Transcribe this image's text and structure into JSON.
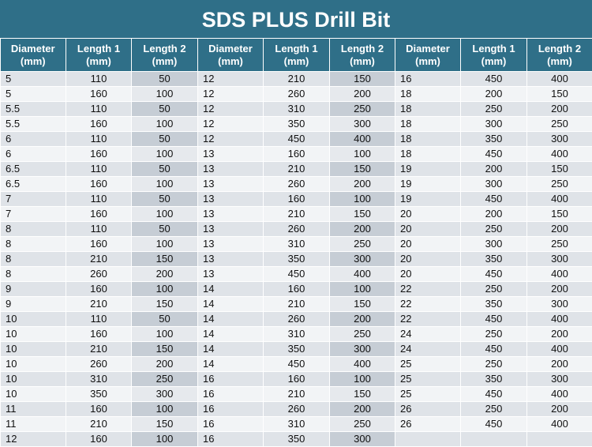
{
  "title": "SDS PLUS Drill Bit",
  "headers": [
    [
      "Diameter",
      "(mm)"
    ],
    [
      "Length 1",
      "(mm)"
    ],
    [
      "Length 2",
      "(mm)"
    ],
    [
      "Diameter",
      "(mm)"
    ],
    [
      "Length 1",
      "(mm)"
    ],
    [
      "Length 2",
      "(mm)"
    ],
    [
      "Diameter",
      "(mm)"
    ],
    [
      "Length 1",
      "(mm)"
    ],
    [
      "Length 2",
      "(mm)"
    ]
  ],
  "rows": [
    [
      "5",
      "110",
      "50",
      "12",
      "210",
      "150",
      "16",
      "450",
      "400"
    ],
    [
      "5",
      "160",
      "100",
      "12",
      "260",
      "200",
      "18",
      "200",
      "150"
    ],
    [
      "5.5",
      "110",
      "50",
      "12",
      "310",
      "250",
      "18",
      "250",
      "200"
    ],
    [
      "5.5",
      "160",
      "100",
      "12",
      "350",
      "300",
      "18",
      "300",
      "250"
    ],
    [
      "6",
      "110",
      "50",
      "12",
      "450",
      "400",
      "18",
      "350",
      "300"
    ],
    [
      "6",
      "160",
      "100",
      "13",
      "160",
      "100",
      "18",
      "450",
      "400"
    ],
    [
      "6.5",
      "110",
      "50",
      "13",
      "210",
      "150",
      "19",
      "200",
      "150"
    ],
    [
      "6.5",
      "160",
      "100",
      "13",
      "260",
      "200",
      "19",
      "300",
      "250"
    ],
    [
      "7",
      "110",
      "50",
      "13",
      "160",
      "100",
      "19",
      "450",
      "400"
    ],
    [
      "7",
      "160",
      "100",
      "13",
      "210",
      "150",
      "20",
      "200",
      "150"
    ],
    [
      "8",
      "110",
      "50",
      "13",
      "260",
      "200",
      "20",
      "250",
      "200"
    ],
    [
      "8",
      "160",
      "100",
      "13",
      "310",
      "250",
      "20",
      "300",
      "250"
    ],
    [
      "8",
      "210",
      "150",
      "13",
      "350",
      "300",
      "20",
      "350",
      "300"
    ],
    [
      "8",
      "260",
      "200",
      "13",
      "450",
      "400",
      "20",
      "450",
      "400"
    ],
    [
      "9",
      "160",
      "100",
      "14",
      "160",
      "100",
      "22",
      "250",
      "200"
    ],
    [
      "9",
      "210",
      "150",
      "14",
      "210",
      "150",
      "22",
      "350",
      "300"
    ],
    [
      "10",
      "110",
      "50",
      "14",
      "260",
      "200",
      "22",
      "450",
      "400"
    ],
    [
      "10",
      "160",
      "100",
      "14",
      "310",
      "250",
      "24",
      "250",
      "200"
    ],
    [
      "10",
      "210",
      "150",
      "14",
      "350",
      "300",
      "24",
      "450",
      "400"
    ],
    [
      "10",
      "260",
      "200",
      "14",
      "450",
      "400",
      "25",
      "250",
      "200"
    ],
    [
      "10",
      "310",
      "250",
      "16",
      "160",
      "100",
      "25",
      "350",
      "300"
    ],
    [
      "10",
      "350",
      "300",
      "16",
      "210",
      "150",
      "25",
      "450",
      "400"
    ],
    [
      "11",
      "160",
      "100",
      "16",
      "260",
      "200",
      "26",
      "250",
      "200"
    ],
    [
      "11",
      "210",
      "150",
      "16",
      "310",
      "250",
      "26",
      "450",
      "400"
    ],
    [
      "12",
      "160",
      "100",
      "16",
      "350",
      "300",
      "",
      "",
      " "
    ]
  ]
}
